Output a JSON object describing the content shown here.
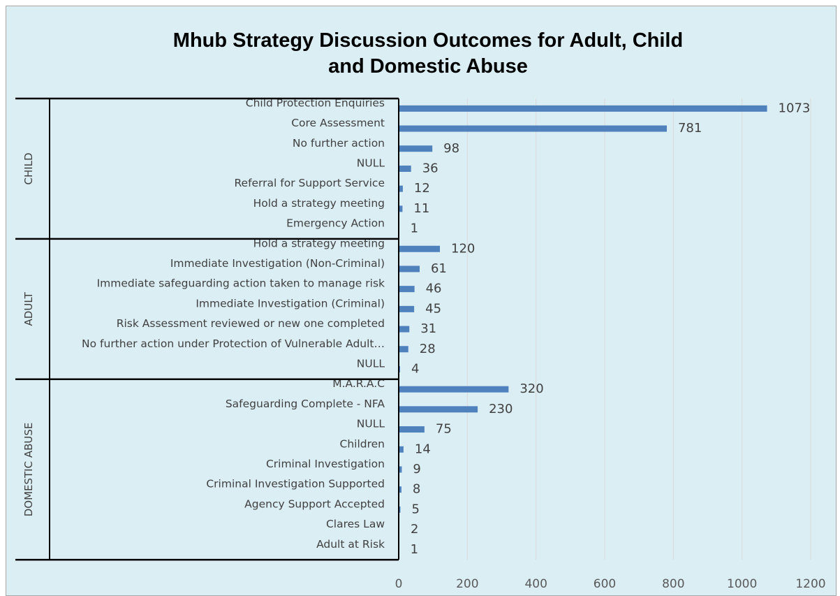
{
  "colors": {
    "background": "#dbeef4",
    "bar": "#4f81bd",
    "grid": "#d9d9d9",
    "text": "#404040",
    "axis": "#000000"
  },
  "chart_data": {
    "type": "bar",
    "orientation": "horizontal",
    "title": "Mhub Strategy Discussion Outcomes for Adult, Child and Domestic Abuse",
    "title_lines": [
      "Mhub Strategy Discussion Outcomes for Adult, Child",
      "and Domestic Abuse"
    ],
    "xlim": [
      0,
      1200
    ],
    "x_ticks": [
      0,
      200,
      400,
      600,
      800,
      1000,
      1200
    ],
    "grid": true,
    "legend": "none",
    "groups": [
      {
        "name": "CHILD",
        "categories": [
          "Child Protection Enquiries",
          "Core Assessment",
          "No further action",
          "NULL",
          "Referral for Support Service",
          "Hold a strategy meeting",
          "Emergency Action"
        ],
        "values": [
          1073,
          781,
          98,
          36,
          12,
          11,
          1
        ]
      },
      {
        "name": "ADULT",
        "categories": [
          "Hold a strategy meeting",
          "Immediate Investigation (Non-Criminal)",
          "Immediate safeguarding action taken to manage risk",
          "Immediate Investigation (Criminal)",
          "Risk Assessment reviewed or new one completed",
          "No further action under Protection of Vulnerable Adult…",
          "NULL"
        ],
        "values": [
          120,
          61,
          46,
          45,
          31,
          28,
          4
        ]
      },
      {
        "name": "DOMESTIC ABUSE",
        "categories": [
          "M.A.R.A.C",
          "Safeguarding Complete - NFA",
          "NULL",
          "Children",
          "Criminal Investigation",
          "Criminal Investigation Supported",
          "Agency Support Accepted",
          "Clares Law",
          "Adult at Risk"
        ],
        "values": [
          320,
          230,
          75,
          14,
          9,
          8,
          5,
          2,
          1
        ]
      }
    ]
  }
}
